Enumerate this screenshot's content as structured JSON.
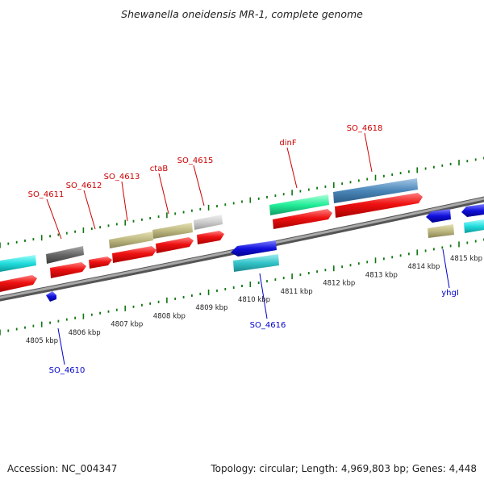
{
  "title": "Shewanella oneidensis MR-1, complete genome",
  "footer": {
    "accession": "Accession: NC_004347",
    "topology": "Topology: circular; Length: 4,969,803 bp; Genes: 4,448"
  },
  "ruler_labels": [
    "4805 kbp",
    "4806 kbp",
    "4807 kbp",
    "4808 kbp",
    "4809 kbp",
    "4810 kbp",
    "4811 kbp",
    "4812 kbp",
    "4813 kbp",
    "4814 kbp",
    "4815 kbp"
  ],
  "top_labels": [
    "SO_4611",
    "SO_4612",
    "SO_4613",
    "ctaB",
    "SO_4615",
    "dinF",
    "SO_4618"
  ],
  "bottom_labels": [
    "SO_4610",
    "SO_4616",
    "yhgI"
  ],
  "colors": {
    "cds": "#ee1111",
    "feature_olive": "#bdb780",
    "feature_cyan": "#22dddd",
    "feature_blue": "#1111dd",
    "feature_green": "#22ee99",
    "feature_steel": "#4a86b8",
    "feature_gray": "#666666",
    "feature_lightgray": "#cccccc",
    "tick": "#117711",
    "backbone": "#8a8a8a"
  }
}
